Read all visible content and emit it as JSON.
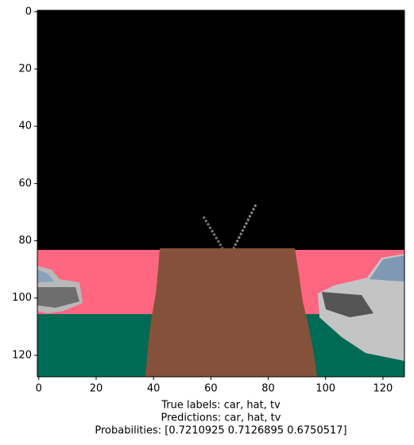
{
  "chart_data": {
    "type": "image",
    "xlabel": [
      "True labels: car, hat, tv",
      "Predictions: car, hat, tv",
      "Probabilities: [0.7210925 0.7126895 0.6750517]"
    ],
    "xlim": [
      -0.5,
      127.5
    ],
    "ylim": [
      127.5,
      -0.5
    ],
    "xticks": [
      0,
      20,
      40,
      60,
      80,
      100,
      120
    ],
    "yticks": [
      0,
      20,
      40,
      60,
      80,
      100,
      120
    ]
  }
}
